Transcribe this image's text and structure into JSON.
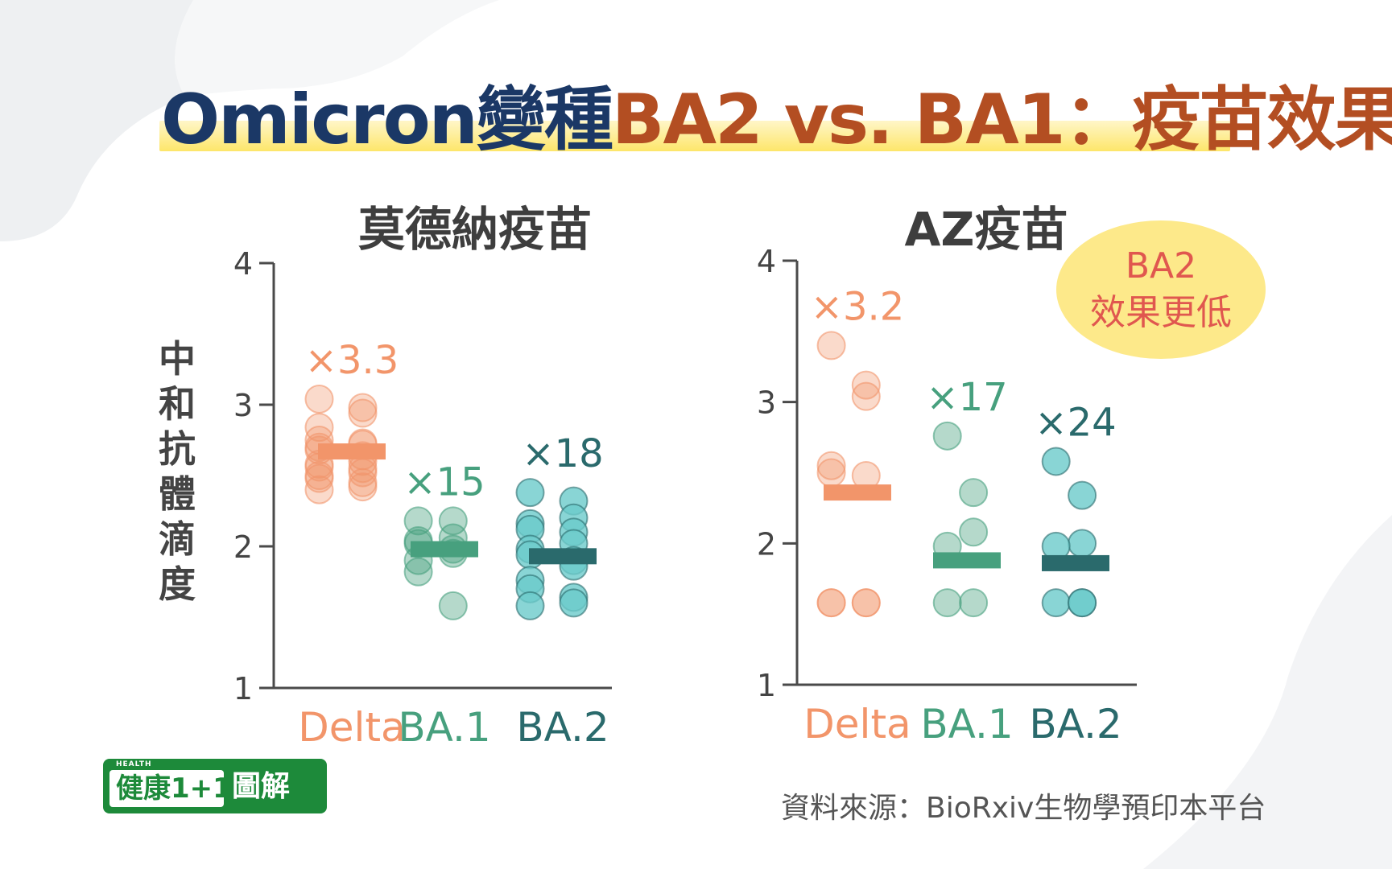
{
  "title": {
    "part1": "Omicron變種",
    "part2": "BA2 vs. BA1：疫苗效果"
  },
  "colors": {
    "navy": "#1b3866",
    "rust": "#b34e22",
    "delta": "#f2956a",
    "ba1": "#47a07e",
    "ba2": "#2a6a6c",
    "ba2_dot": "#6ccacb",
    "axis": "#4a4a4a"
  },
  "ylabel": "中和抗體滴度",
  "badge": {
    "line1": "BA2",
    "line2": "效果更低"
  },
  "logo": {
    "small": "HEALTH",
    "brand": "健康1+1",
    "suffix": "圖解"
  },
  "source": "資料來源：BioRxiv生物學預印本平台",
  "chart_data": [
    {
      "type": "scatter",
      "title": "莫德納疫苗",
      "categories": [
        "Delta",
        "BA.1",
        "BA.2"
      ],
      "ylim": [
        1,
        4
      ],
      "yticks": [
        1,
        2,
        3,
        4
      ],
      "series": [
        {
          "category": "Delta",
          "fold_label": "×3.3",
          "median": 2.67,
          "points": [
            3.04,
            2.94,
            2.98,
            2.84,
            2.75,
            2.73,
            2.72,
            2.7,
            2.68,
            2.64,
            2.6,
            2.58,
            2.56,
            2.55,
            2.52,
            2.5,
            2.48,
            2.45,
            2.42,
            2.4
          ]
        },
        {
          "category": "BA.1",
          "fold_label": "×15",
          "median": 1.98,
          "points": [
            2.18,
            2.18,
            2.06,
            2.04,
            2.02,
            1.98,
            1.95,
            1.9,
            1.82,
            1.58
          ]
        },
        {
          "category": "BA.2",
          "fold_label": "×18",
          "median": 1.93,
          "points": [
            2.38,
            2.32,
            2.2,
            2.16,
            2.12,
            2.1,
            2.02,
            1.98,
            1.94,
            1.9,
            1.86,
            1.76,
            1.7,
            1.64,
            1.6,
            1.58
          ]
        }
      ]
    },
    {
      "type": "scatter",
      "title": "AZ疫苗",
      "categories": [
        "Delta",
        "BA.1",
        "BA.2"
      ],
      "ylim": [
        1,
        4
      ],
      "yticks": [
        1,
        2,
        3,
        4
      ],
      "series": [
        {
          "category": "Delta",
          "fold_label": "×3.2",
          "median": 2.36,
          "points": [
            3.4,
            3.12,
            3.04,
            2.55,
            2.5,
            2.48,
            1.58,
            1.58,
            1.58,
            1.58
          ]
        },
        {
          "category": "BA.1",
          "fold_label": "×17",
          "median": 1.88,
          "points": [
            2.76,
            2.36,
            2.08,
            1.98,
            1.58,
            1.58
          ]
        },
        {
          "category": "BA.2",
          "fold_label": "×24",
          "median": 1.86,
          "points": [
            2.58,
            2.34,
            2.0,
            1.98,
            1.58,
            1.58,
            1.58
          ]
        }
      ]
    }
  ]
}
